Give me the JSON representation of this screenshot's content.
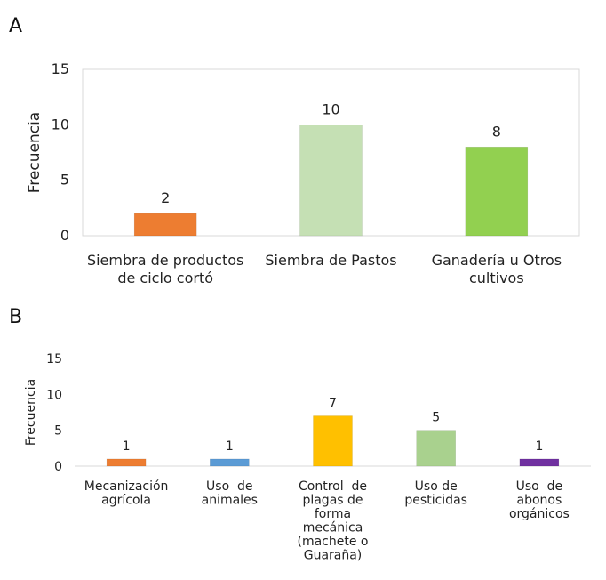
{
  "chart_data": [
    {
      "type": "bar",
      "panel_label": "A",
      "ylabel": "Frecuencia",
      "xlabel": "",
      "ylim": [
        0,
        15
      ],
      "yticks": [
        "0",
        "5",
        "10",
        "15"
      ],
      "categories": [
        [
          "Siembra de productos",
          "de ciclo cortó"
        ],
        [
          "Siembra de Pastos"
        ],
        [
          "Ganadería u Otros",
          "cultivos"
        ]
      ],
      "values": [
        2,
        10,
        8
      ],
      "colors": [
        "#ED7D31",
        "#C5E0B4",
        "#92D050"
      ],
      "grid": false,
      "legend": "none"
    },
    {
      "type": "bar",
      "panel_label": "B",
      "ylabel": "Frecuencia",
      "xlabel": "",
      "ylim": [
        0,
        15
      ],
      "yticks": [
        "0",
        "5",
        "10",
        "15"
      ],
      "categories": [
        [
          "Mecanización",
          "agrícola"
        ],
        [
          "Uso  de",
          "animales"
        ],
        [
          "Control  de",
          "plagas de",
          "forma",
          "mecánica",
          "(machete o",
          "Guaraña)"
        ],
        [
          "Uso de",
          "pesticidas"
        ],
        [
          "Uso  de",
          "abonos",
          "orgánicos"
        ]
      ],
      "values": [
        1,
        1,
        7,
        5,
        1
      ],
      "colors": [
        "#ED7D31",
        "#5B9BD5",
        "#FFC000",
        "#A9D18E",
        "#7030A0"
      ],
      "grid": false,
      "legend": "none"
    }
  ]
}
